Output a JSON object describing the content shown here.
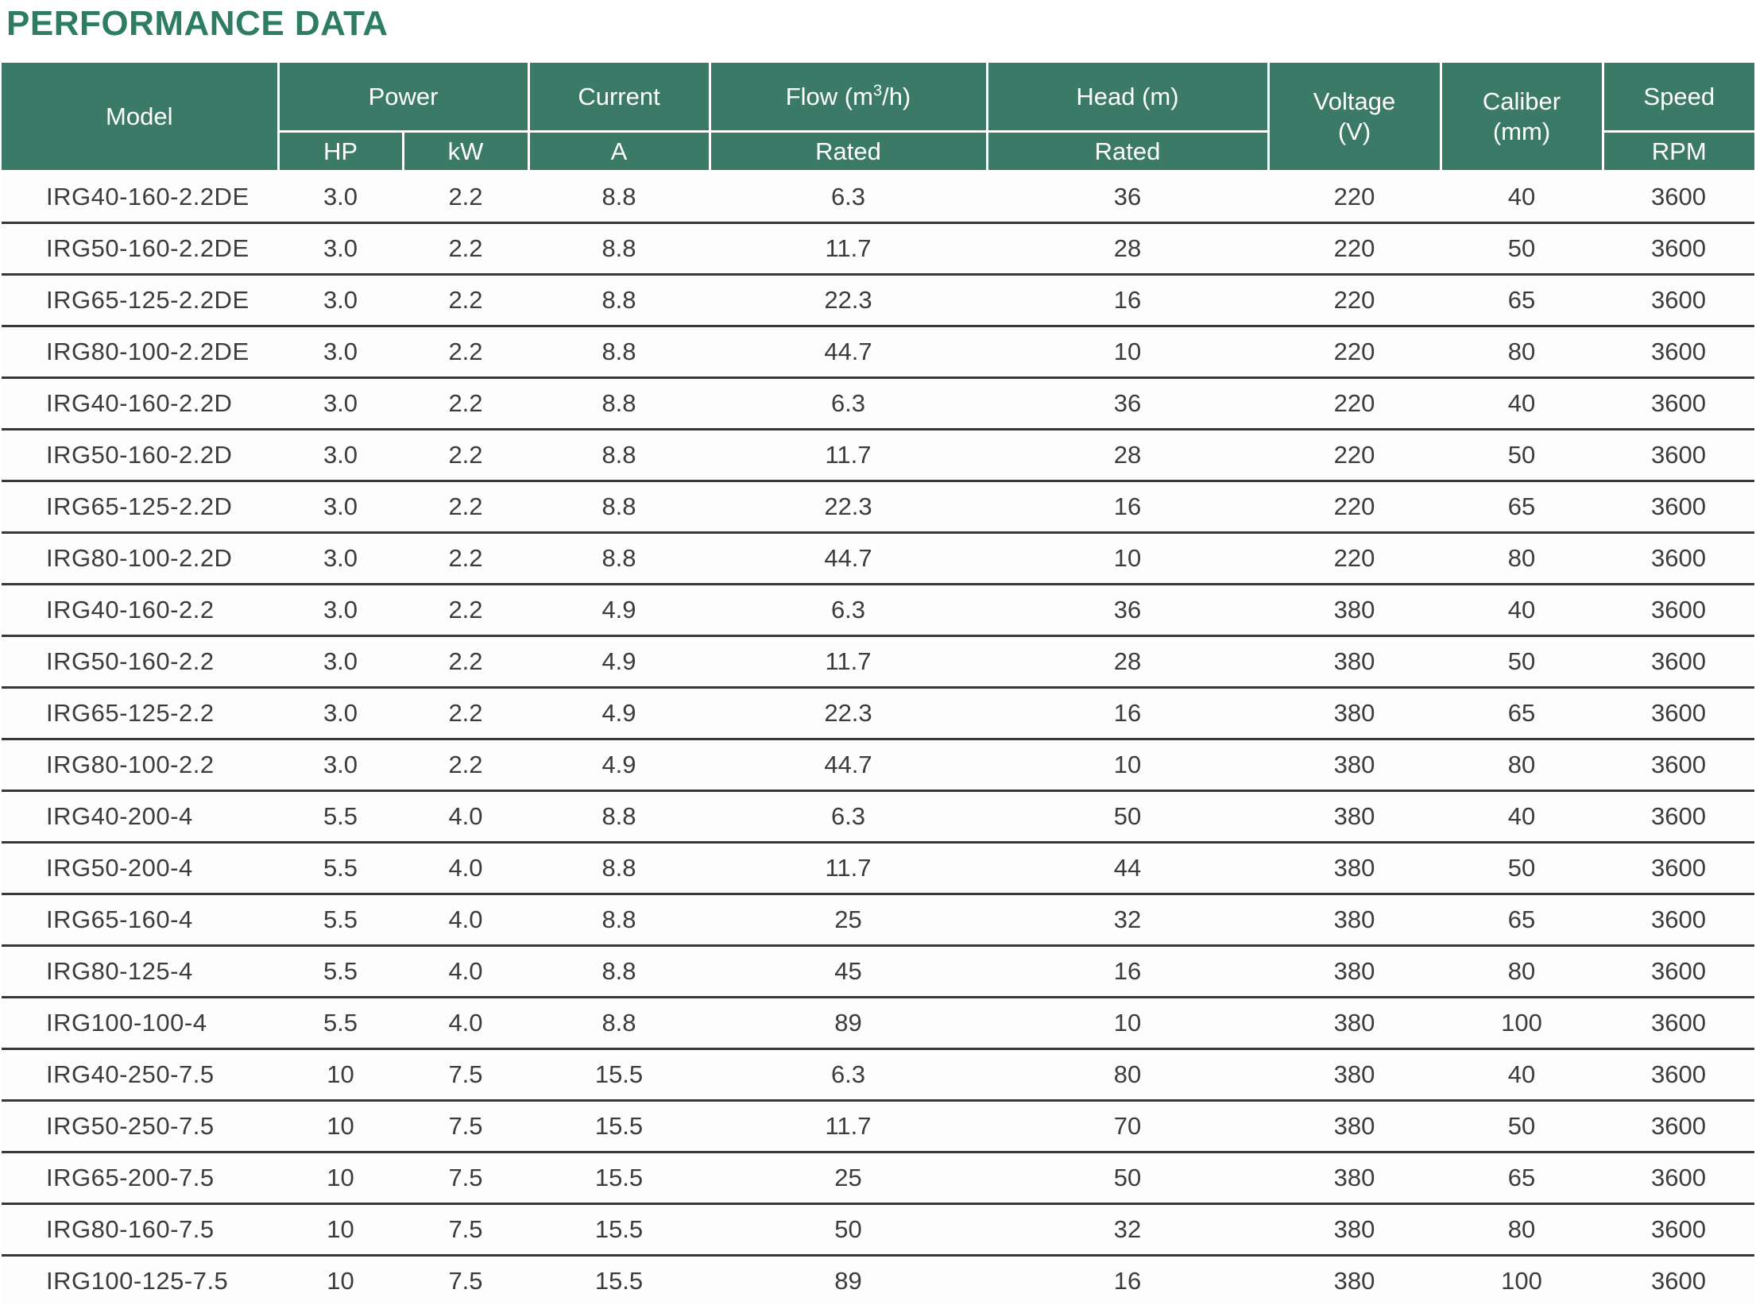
{
  "page": {
    "title": "PERFORMANCE DATA"
  },
  "colors": {
    "title_green": "#2e7c63",
    "header_bg_green": "#3b7a66",
    "header_text": "#ffffff",
    "row_separator": "#3b3734",
    "body_text": "#3c3c3c"
  },
  "table": {
    "header": {
      "model": "Model",
      "power": "Power",
      "power_hp": "HP",
      "power_kw": "kW",
      "current": "Current",
      "current_a": "A",
      "flow_pre": "Flow (m",
      "flow_sup": "3",
      "flow_post": "/h)",
      "flow_sub": "Rated",
      "head": "Head (m)",
      "head_sub": "Rated",
      "voltage_line1": "Voltage",
      "voltage_line2": "(V)",
      "caliber_line1": "Caliber",
      "caliber_line2": "(mm)",
      "speed": "Speed",
      "speed_sub": "RPM"
    },
    "columns_order": [
      "model",
      "hp",
      "kw",
      "a",
      "flow",
      "head",
      "voltage",
      "caliber",
      "speed"
    ],
    "rows": [
      {
        "model": "IRG40-160-2.2DE",
        "hp": "3.0",
        "kw": "2.2",
        "a": "8.8",
        "flow": "6.3",
        "head": "36",
        "voltage": "220",
        "caliber": "40",
        "speed": "3600"
      },
      {
        "model": "IRG50-160-2.2DE",
        "hp": "3.0",
        "kw": "2.2",
        "a": "8.8",
        "flow": "11.7",
        "head": "28",
        "voltage": "220",
        "caliber": "50",
        "speed": "3600"
      },
      {
        "model": "IRG65-125-2.2DE",
        "hp": "3.0",
        "kw": "2.2",
        "a": "8.8",
        "flow": "22.3",
        "head": "16",
        "voltage": "220",
        "caliber": "65",
        "speed": "3600"
      },
      {
        "model": "IRG80-100-2.2DE",
        "hp": "3.0",
        "kw": "2.2",
        "a": "8.8",
        "flow": "44.7",
        "head": "10",
        "voltage": "220",
        "caliber": "80",
        "speed": "3600"
      },
      {
        "model": "IRG40-160-2.2D",
        "hp": "3.0",
        "kw": "2.2",
        "a": "8.8",
        "flow": "6.3",
        "head": "36",
        "voltage": "220",
        "caliber": "40",
        "speed": "3600"
      },
      {
        "model": "IRG50-160-2.2D",
        "hp": "3.0",
        "kw": "2.2",
        "a": "8.8",
        "flow": "11.7",
        "head": "28",
        "voltage": "220",
        "caliber": "50",
        "speed": "3600"
      },
      {
        "model": "IRG65-125-2.2D",
        "hp": "3.0",
        "kw": "2.2",
        "a": "8.8",
        "flow": "22.3",
        "head": "16",
        "voltage": "220",
        "caliber": "65",
        "speed": "3600"
      },
      {
        "model": "IRG80-100-2.2D",
        "hp": "3.0",
        "kw": "2.2",
        "a": "8.8",
        "flow": "44.7",
        "head": "10",
        "voltage": "220",
        "caliber": "80",
        "speed": "3600"
      },
      {
        "model": "IRG40-160-2.2",
        "hp": "3.0",
        "kw": "2.2",
        "a": "4.9",
        "flow": "6.3",
        "head": "36",
        "voltage": "380",
        "caliber": "40",
        "speed": "3600"
      },
      {
        "model": "IRG50-160-2.2",
        "hp": "3.0",
        "kw": "2.2",
        "a": "4.9",
        "flow": "11.7",
        "head": "28",
        "voltage": "380",
        "caliber": "50",
        "speed": "3600"
      },
      {
        "model": "IRG65-125-2.2",
        "hp": "3.0",
        "kw": "2.2",
        "a": "4.9",
        "flow": "22.3",
        "head": "16",
        "voltage": "380",
        "caliber": "65",
        "speed": "3600"
      },
      {
        "model": "IRG80-100-2.2",
        "hp": "3.0",
        "kw": "2.2",
        "a": "4.9",
        "flow": "44.7",
        "head": "10",
        "voltage": "380",
        "caliber": "80",
        "speed": "3600"
      },
      {
        "model": "IRG40-200-4",
        "hp": "5.5",
        "kw": "4.0",
        "a": "8.8",
        "flow": "6.3",
        "head": "50",
        "voltage": "380",
        "caliber": "40",
        "speed": "3600"
      },
      {
        "model": "IRG50-200-4",
        "hp": "5.5",
        "kw": "4.0",
        "a": "8.8",
        "flow": "11.7",
        "head": "44",
        "voltage": "380",
        "caliber": "50",
        "speed": "3600"
      },
      {
        "model": "IRG65-160-4",
        "hp": "5.5",
        "kw": "4.0",
        "a": "8.8",
        "flow": "25",
        "head": "32",
        "voltage": "380",
        "caliber": "65",
        "speed": "3600"
      },
      {
        "model": "IRG80-125-4",
        "hp": "5.5",
        "kw": "4.0",
        "a": "8.8",
        "flow": "45",
        "head": "16",
        "voltage": "380",
        "caliber": "80",
        "speed": "3600"
      },
      {
        "model": "IRG100-100-4",
        "hp": "5.5",
        "kw": "4.0",
        "a": "8.8",
        "flow": "89",
        "head": "10",
        "voltage": "380",
        "caliber": "100",
        "speed": "3600"
      },
      {
        "model": "IRG40-250-7.5",
        "hp": "10",
        "kw": "7.5",
        "a": "15.5",
        "flow": "6.3",
        "head": "80",
        "voltage": "380",
        "caliber": "40",
        "speed": "3600"
      },
      {
        "model": "IRG50-250-7.5",
        "hp": "10",
        "kw": "7.5",
        "a": "15.5",
        "flow": "11.7",
        "head": "70",
        "voltage": "380",
        "caliber": "50",
        "speed": "3600"
      },
      {
        "model": "IRG65-200-7.5",
        "hp": "10",
        "kw": "7.5",
        "a": "15.5",
        "flow": "25",
        "head": "50",
        "voltage": "380",
        "caliber": "65",
        "speed": "3600"
      },
      {
        "model": "IRG80-160-7.5",
        "hp": "10",
        "kw": "7.5",
        "a": "15.5",
        "flow": "50",
        "head": "32",
        "voltage": "380",
        "caliber": "80",
        "speed": "3600"
      },
      {
        "model": "IRG100-125-7.5",
        "hp": "10",
        "kw": "7.5",
        "a": "15.5",
        "flow": "89",
        "head": "16",
        "voltage": "380",
        "caliber": "100",
        "speed": "3600"
      }
    ]
  }
}
